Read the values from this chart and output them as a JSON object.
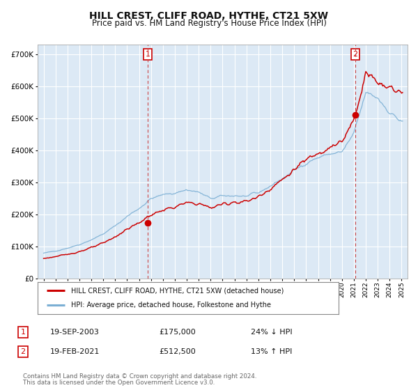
{
  "title": "HILL CREST, CLIFF ROAD, HYTHE, CT21 5XW",
  "subtitle": "Price paid vs. HM Land Registry's House Price Index (HPI)",
  "title_fontsize": 10,
  "subtitle_fontsize": 8.5,
  "background_color": "#ffffff",
  "plot_bg_color": "#dce9f5",
  "grid_color": "#ffffff",
  "sale1_date_label": "19-SEP-2003",
  "sale1_price_label": "£175,000",
  "sale1_pct_label": "24% ↓ HPI",
  "sale1_year": 2003.72,
  "sale1_price": 175000,
  "sale2_date_label": "19-FEB-2021",
  "sale2_price_label": "£512,500",
  "sale2_pct_label": "13% ↑ HPI",
  "sale2_year": 2021.12,
  "sale2_price": 512500,
  "red_line_color": "#cc0000",
  "blue_line_color": "#7bafd4",
  "marker_line_color": "#cc0000",
  "legend_label1": "HILL CREST, CLIFF ROAD, HYTHE, CT21 5XW (detached house)",
  "legend_label2": "HPI: Average price, detached house, Folkestone and Hythe",
  "footer1": "Contains HM Land Registry data © Crown copyright and database right 2024.",
  "footer2": "This data is licensed under the Open Government Licence v3.0.",
  "ylim_max": 730000,
  "ylim_min": 0,
  "xlim_min": 1994.5,
  "xlim_max": 2025.5,
  "yticks": [
    0,
    100000,
    200000,
    300000,
    400000,
    500000,
    600000,
    700000
  ]
}
